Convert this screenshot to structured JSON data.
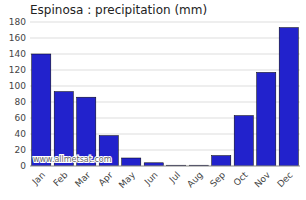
{
  "chart_data": {
    "type": "bar",
    "title": "Espinosa : precipitation (mm)",
    "categories": [
      "Jan",
      "Feb",
      "Mar",
      "Apr",
      "May",
      "Jun",
      "Jul",
      "Aug",
      "Sep",
      "Oct",
      "Nov",
      "Dec"
    ],
    "values": [
      140,
      93,
      86,
      38,
      10,
      4,
      1,
      1,
      13,
      63,
      117,
      173
    ],
    "color": "#2222cc",
    "ylim": [
      0,
      180
    ],
    "yticks": [
      0,
      20,
      40,
      60,
      80,
      100,
      120,
      140,
      160,
      180
    ],
    "grid": true,
    "annotations": [
      "www.allmetsat.com"
    ]
  }
}
